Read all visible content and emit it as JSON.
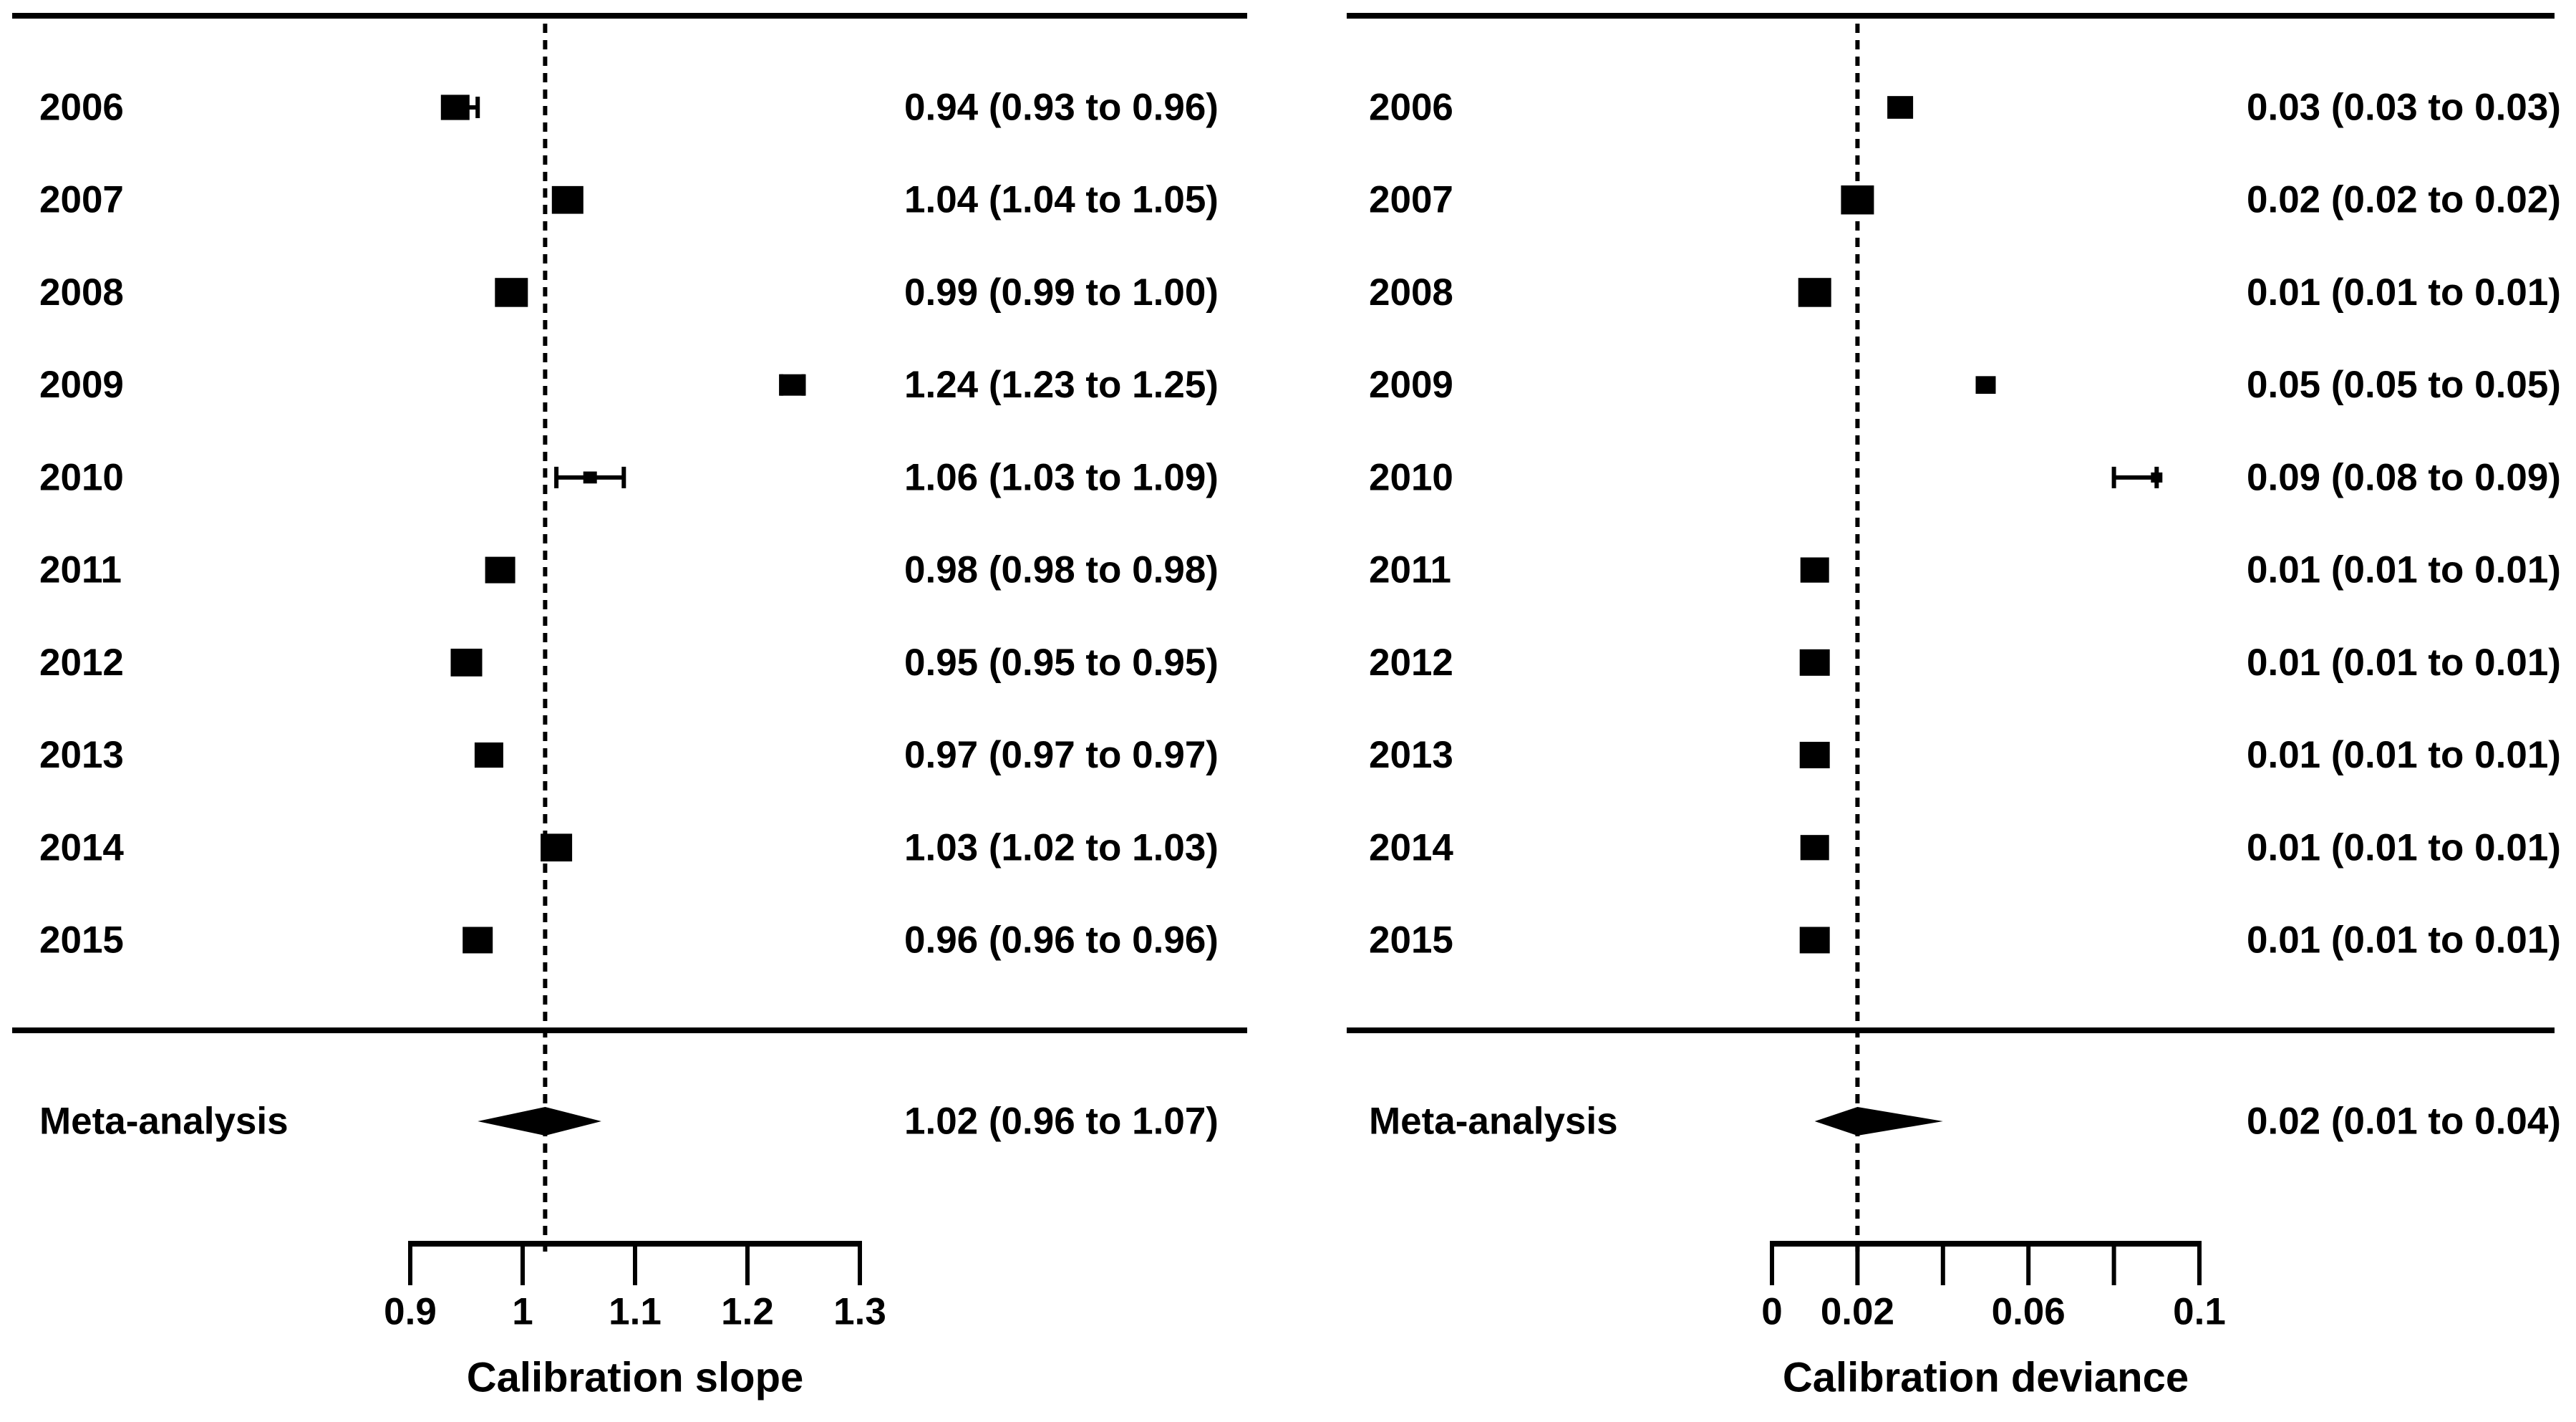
{
  "figure": {
    "background_color": "#ffffff",
    "ink_color": "#000000",
    "meta_row_label": "Meta-analysis"
  },
  "chart_data": [
    {
      "type": "forest",
      "id": "calibration-slope",
      "title": "",
      "xlabel": "Calibration slope",
      "ylabel": "",
      "xlim": [
        0.9,
        1.3
      ],
      "axis_ticks": [
        0.9,
        1.0,
        1.1,
        1.2,
        1.3
      ],
      "axis_tick_labels": [
        "0.9",
        "1",
        "1.1",
        "1.2",
        "1.3"
      ],
      "reference_line": 1.02,
      "grid": false,
      "legend": "none",
      "categories": [
        "2006",
        "2007",
        "2008",
        "2009",
        "2010",
        "2011",
        "2012",
        "2013",
        "2014",
        "2015"
      ],
      "estimates": [
        0.94,
        1.04,
        0.99,
        1.24,
        1.06,
        0.98,
        0.95,
        0.97,
        1.03,
        0.96
      ],
      "ci_low": [
        0.93,
        1.04,
        0.99,
        1.23,
        1.03,
        0.98,
        0.95,
        0.97,
        1.02,
        0.96
      ],
      "ci_high": [
        0.96,
        1.05,
        1.0,
        1.25,
        1.09,
        0.98,
        0.95,
        0.97,
        1.03,
        0.96
      ],
      "labels": [
        "0.94 (0.93 to 0.96)",
        "1.04 (1.04 to 1.05)",
        "0.99 (0.99 to 1.00)",
        "1.24 (1.23 to 1.25)",
        "1.06 (1.03 to 1.09)",
        "0.98 (0.98 to 0.98)",
        "0.95 (0.95 to 0.95)",
        "0.97 (0.97 to 0.97)",
        "1.03 (1.02 to 1.03)",
        "0.96 (0.96 to 0.96)"
      ],
      "marker_sizes": [
        40,
        44,
        46,
        34,
        19,
        42,
        44,
        40,
        44,
        42
      ],
      "meta": {
        "label": "Meta-analysis",
        "estimate": 1.02,
        "ci_low": 0.96,
        "ci_high": 1.07,
        "text": "1.02 (0.96 to 1.07)"
      }
    },
    {
      "type": "forest",
      "id": "calibration-deviance",
      "title": "",
      "xlabel": "Calibration deviance",
      "ylabel": "",
      "xlim": [
        0,
        0.1
      ],
      "axis_ticks": [
        0,
        0.02,
        0.04,
        0.06,
        0.08,
        0.1
      ],
      "axis_tick_labels": [
        "0",
        "0.02",
        "",
        "0.06",
        "",
        "0.1"
      ],
      "reference_line": 0.02,
      "grid": false,
      "legend": "none",
      "categories": [
        "2006",
        "2007",
        "2008",
        "2009",
        "2010",
        "2011",
        "2012",
        "2013",
        "2014",
        "2015"
      ],
      "estimates": [
        0.03,
        0.02,
        0.01,
        0.05,
        0.09,
        0.01,
        0.01,
        0.01,
        0.01,
        0.01
      ],
      "ci_low": [
        0.03,
        0.02,
        0.01,
        0.05,
        0.08,
        0.01,
        0.01,
        0.01,
        0.01,
        0.01
      ],
      "ci_high": [
        0.03,
        0.02,
        0.01,
        0.05,
        0.09,
        0.01,
        0.01,
        0.01,
        0.01,
        0.01
      ],
      "labels": [
        "0.03 (0.03 to 0.03)",
        "0.02 (0.02 to 0.02)",
        "0.01 (0.01 to 0.01)",
        "0.05 (0.05 to 0.05)",
        "0.09 (0.08 to 0.09)",
        "0.01 (0.01 to 0.01)",
        "0.01 (0.01 to 0.01)",
        "0.01 (0.01 to 0.01)",
        "0.01 (0.01 to 0.01)",
        "0.01 (0.01 to 0.01)"
      ],
      "marker_sizes": [
        36,
        46,
        46,
        28,
        16,
        40,
        42,
        42,
        40,
        42
      ],
      "meta": {
        "label": "Meta-analysis",
        "estimate": 0.02,
        "ci_low": 0.01,
        "ci_high": 0.04,
        "text": "0.02 (0.01 to 0.04)"
      }
    }
  ]
}
